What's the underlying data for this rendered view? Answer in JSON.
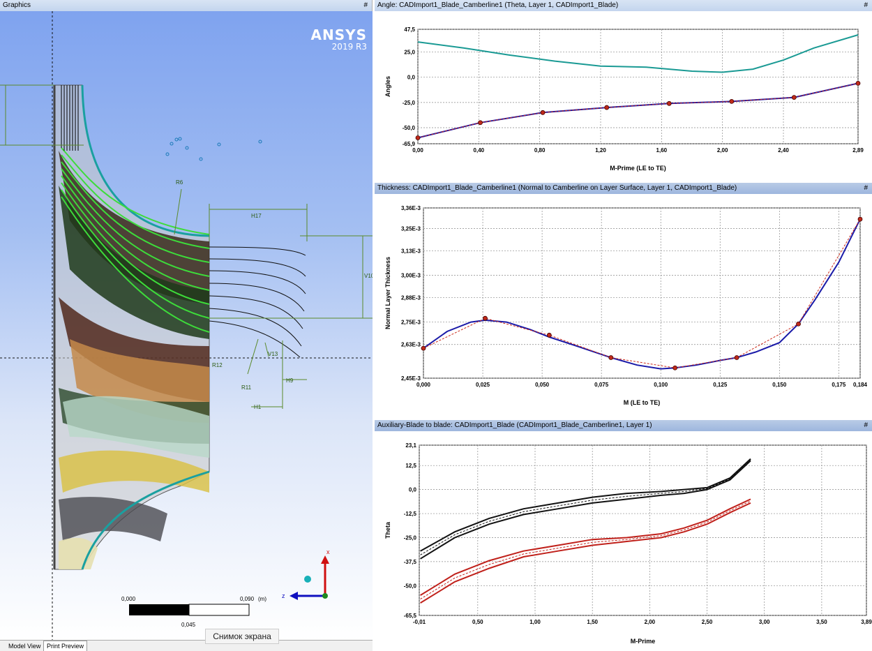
{
  "graphics": {
    "title": "Graphics",
    "pin": "#",
    "logo_brand": "ANSYS",
    "logo_version": "2019 R3",
    "dims": {
      "r6": "R6",
      "h17": "H17",
      "v10": "V10",
      "v13": "V13",
      "r11": "R11",
      "h9": "H9",
      "h1": "H1",
      "r12": "R12"
    },
    "triad": {
      "x": "x",
      "z": "z"
    },
    "scale": {
      "start": "0,000",
      "end": "0,090",
      "unit": "(m)",
      "mid": "0,045"
    },
    "tabs": [
      "Model View",
      "Print Preview"
    ],
    "snapshot": "Снимок экрана"
  },
  "charts": [
    {
      "title": "Angle: CADImport1_Blade_Camberline1 (Theta, Layer 1, CADImport1_Blade)",
      "pin": "#",
      "chart_data": {
        "type": "line",
        "xlabel": "M-Prime (LE to TE)",
        "ylabel": "Angles",
        "xlim": [
          0,
          2.89
        ],
        "ylim": [
          -65.9,
          47.5
        ],
        "xticks": [
          "0,00",
          "0,40",
          "0,80",
          "1,20",
          "1,60",
          "2,00",
          "2,40",
          "2,89"
        ],
        "xtick_values": [
          0,
          0.4,
          0.8,
          1.2,
          1.6,
          2.0,
          2.4,
          2.89
        ],
        "yticks": [
          "47,5",
          "25,0",
          "0,0",
          "-25,0",
          "-50,0",
          "-65,9"
        ],
        "ytick_values": [
          47.5,
          25.0,
          0.0,
          -25.0,
          -50.0,
          -65.9
        ],
        "series": [
          {
            "color": "#1a9a94",
            "x": [
              0,
              0.3,
              0.6,
              0.9,
              1.2,
              1.5,
              1.8,
              2.0,
              2.2,
              2.4,
              2.6,
              2.89
            ],
            "y": [
              35,
              29,
              22,
              16,
              11,
              10,
              6,
              5,
              8,
              17,
              29,
              42
            ]
          },
          {
            "color": "#1a1aa8",
            "x": [
              0,
              0.41,
              0.82,
              1.24,
              1.65,
              2.06,
              2.47,
              2.89
            ],
            "y": [
              -60,
              -45,
              -35,
              -30,
              -26,
              -24,
              -20,
              -6
            ]
          },
          {
            "color": "#cc2a1a",
            "dashed": true,
            "markers": true,
            "x": [
              0,
              0.41,
              0.82,
              1.24,
              1.65,
              2.06,
              2.47,
              2.89
            ],
            "y": [
              -60,
              -45,
              -35,
              -30,
              -26,
              -24,
              -20,
              -6
            ]
          }
        ]
      }
    },
    {
      "title": "Thickness: CADImport1_Blade_Camberline1 (Normal to Camberline on Layer Surface, Layer 1, CADImport1_Blade)",
      "pin": "#",
      "chart_data": {
        "type": "line",
        "xlabel": "M (LE to TE)",
        "ylabel": "Normal Layer Thickness",
        "xlim": [
          0,
          0.184
        ],
        "ylim": [
          2.45,
          3.36
        ],
        "xticks": [
          "0,000",
          "0,025",
          "0,050",
          "0,075",
          "0,100",
          "0,125",
          "0,150",
          "0,175",
          "0,184"
        ],
        "xtick_values": [
          0,
          0.025,
          0.05,
          0.075,
          0.1,
          0.125,
          0.15,
          0.175,
          0.184
        ],
        "yticks": [
          "3,36E-3",
          "3,25E-3",
          "3,13E-3",
          "3,00E-3",
          "2,88E-3",
          "2,75E-3",
          "2,63E-3",
          "2,45E-3"
        ],
        "ytick_values": [
          3.36,
          3.25,
          3.13,
          3.0,
          2.88,
          2.75,
          2.63,
          2.45
        ],
        "series": [
          {
            "color": "#1a1aa8",
            "x": [
              0,
              0.01,
              0.02,
              0.026,
              0.035,
              0.045,
              0.053,
              0.065,
              0.079,
              0.09,
              0.1,
              0.106,
              0.115,
              0.125,
              0.132,
              0.14,
              0.15,
              0.158,
              0.165,
              0.175,
              0.184
            ],
            "y": [
              2.61,
              2.7,
              2.75,
              2.76,
              2.75,
              2.71,
              2.67,
              2.62,
              2.56,
              2.52,
              2.5,
              2.505,
              2.52,
              2.545,
              2.56,
              2.59,
              2.64,
              2.74,
              2.87,
              3.07,
              3.3
            ]
          },
          {
            "color": "#cc2a1a",
            "dashed": true,
            "markers": true,
            "x": [
              0,
              0.026,
              0.053,
              0.079,
              0.106,
              0.132,
              0.158,
              0.184
            ],
            "y": [
              2.61,
              2.77,
              2.68,
              2.56,
              2.505,
              2.56,
              2.74,
              3.3
            ]
          }
        ]
      }
    },
    {
      "title": "Auxiliary-Blade to blade: CADImport1_Blade (CADImport1_Blade_Camberline1, Layer 1)",
      "pin": "#",
      "chart_data": {
        "type": "line",
        "xlabel": "M-Prime",
        "ylabel": "Theta",
        "xlim": [
          -0.01,
          3.89
        ],
        "ylim": [
          -65.5,
          23.1
        ],
        "xticks": [
          "-0,01",
          "0,50",
          "1,00",
          "1,50",
          "2,00",
          "2,50",
          "3,00",
          "3,50",
          "3,89"
        ],
        "xtick_values": [
          -0.01,
          0.5,
          1.0,
          1.5,
          2.0,
          2.5,
          3.0,
          3.5,
          3.89
        ],
        "yticks": [
          "23,1",
          "12,5",
          "0,0",
          "-12,5",
          "-25,0",
          "-37,5",
          "-50,0",
          "-65,5"
        ],
        "ytick_values": [
          23.1,
          12.5,
          0.0,
          -12.5,
          -25.0,
          -37.5,
          -50.0,
          -65.5
        ],
        "series": [
          {
            "color": "#111111",
            "x": [
              0,
              0.3,
              0.6,
              0.9,
              1.2,
              1.5,
              1.8,
              2.1,
              2.3,
              2.5,
              2.7,
              2.88
            ],
            "y": [
              -32,
              -22,
              -15,
              -10,
              -7,
              -4,
              -2,
              -1,
              0,
              1,
              6,
              16
            ]
          },
          {
            "color": "#111111",
            "x": [
              0,
              0.3,
              0.6,
              0.9,
              1.2,
              1.5,
              1.8,
              2.1,
              2.3,
              2.5,
              2.7,
              2.88
            ],
            "y": [
              -36,
              -25,
              -18,
              -13,
              -10,
              -7,
              -5,
              -3,
              -2,
              0,
              5,
              15
            ]
          },
          {
            "color": "#111111",
            "dashed": true,
            "x": [
              0,
              0.3,
              0.6,
              0.9,
              1.2,
              1.5,
              1.8,
              2.1,
              2.3,
              2.5,
              2.7,
              2.88
            ],
            "y": [
              -34,
              -23.5,
              -16.5,
              -11.5,
              -8.5,
              -5.5,
              -3.5,
              -2,
              -1,
              0.5,
              5.5,
              15.5
            ]
          },
          {
            "color": "#c0201a",
            "x": [
              0,
              0.3,
              0.6,
              0.9,
              1.2,
              1.5,
              1.8,
              2.1,
              2.3,
              2.5,
              2.7,
              2.88
            ],
            "y": [
              -55,
              -44,
              -37,
              -32,
              -29,
              -26,
              -25,
              -23,
              -20,
              -16,
              -10,
              -5
            ]
          },
          {
            "color": "#c0201a",
            "x": [
              0,
              0.3,
              0.6,
              0.9,
              1.2,
              1.5,
              1.8,
              2.1,
              2.3,
              2.5,
              2.7,
              2.88
            ],
            "y": [
              -59,
              -48,
              -41,
              -35,
              -32,
              -29,
              -27,
              -25,
              -22,
              -18,
              -12,
              -7
            ]
          },
          {
            "color": "#c0201a",
            "dashed": true,
            "x": [
              0,
              0.3,
              0.6,
              0.9,
              1.2,
              1.5,
              1.8,
              2.1,
              2.3,
              2.5,
              2.7,
              2.88
            ],
            "y": [
              -57,
              -46,
              -39,
              -33.5,
              -30.5,
              -27.5,
              -26,
              -24,
              -21,
              -17,
              -11,
              -6
            ]
          }
        ]
      }
    }
  ]
}
